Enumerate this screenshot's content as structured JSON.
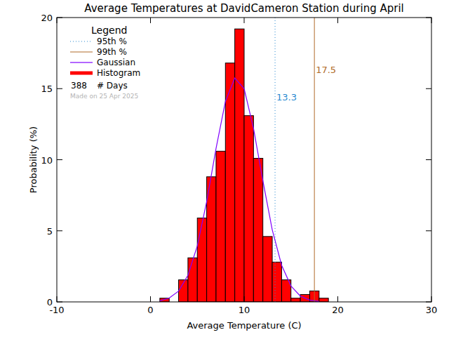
{
  "chart_data": {
    "type": "histogram",
    "title": "Average Temperatures at DavidCameron Station during April",
    "x_label": "Average Temperature (C)",
    "y_label": "Probability (%)",
    "xlim": [
      -10,
      30
    ],
    "xticks": [
      -10,
      0,
      10,
      20,
      30
    ],
    "ylim": [
      0,
      20
    ],
    "yticks": [
      0,
      5,
      10,
      15,
      20
    ],
    "bins": [
      1,
      2,
      3,
      4,
      5,
      6,
      7,
      8,
      9,
      10,
      11,
      12,
      13,
      14,
      15,
      16,
      17,
      18,
      19
    ],
    "series": [
      {
        "name": "Histogram",
        "type": "bar",
        "color": "#ff0000",
        "values": [
          0.26,
          0,
          1.55,
          3.1,
          5.9,
          8.8,
          10.6,
          16.8,
          19.2,
          13.1,
          10.1,
          4.6,
          2.8,
          1.55,
          0.26,
          0.52,
          0.77,
          0.26
        ]
      },
      {
        "name": "Gaussian",
        "type": "line",
        "color": "#8000ff",
        "x": [
          1,
          2,
          3,
          4,
          5,
          6,
          7,
          8,
          9,
          10,
          11,
          12,
          13,
          14,
          15,
          16,
          17,
          18
        ],
        "values": [
          0.08,
          0.27,
          0.76,
          1.88,
          3.94,
          7.06,
          10.8,
          14.1,
          15.75,
          15.0,
          12.2,
          8.52,
          5.07,
          2.58,
          1.12,
          0.41,
          0.13,
          0.03
        ]
      }
    ],
    "reference_lines": [
      {
        "name": "95th %",
        "x": 13.3,
        "color": "#2a8ad0",
        "line_style": "dotted"
      },
      {
        "name": "99th %",
        "x": 17.5,
        "color": "#b06a28",
        "line_style": "solid"
      }
    ],
    "annotations": {
      "legend_title": "Legend",
      "days": 388,
      "days_label": "# Days",
      "made_on": "Made on 25 Apr 2025"
    }
  }
}
